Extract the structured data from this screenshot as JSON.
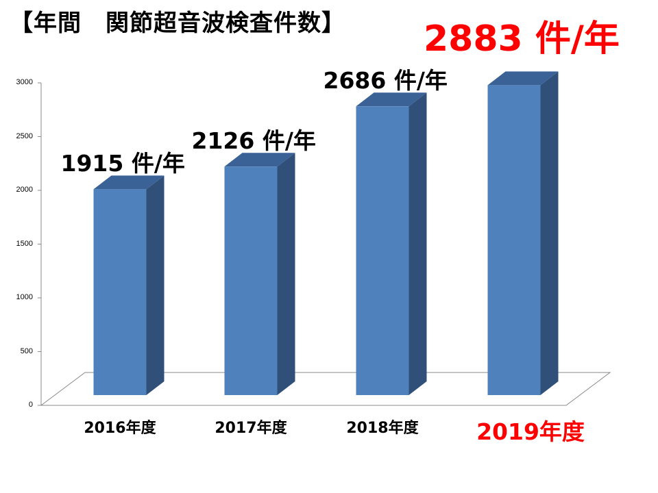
{
  "title": "【年間　関節超音波検査件数】",
  "headline": "2883 件/年",
  "colors": {
    "bar_front": "#4f81bd",
    "bar_side": "#30507a",
    "bar_top": "#3a6296",
    "highlight": "#ff0000",
    "axis": "#888888"
  },
  "chart_data": {
    "type": "bar",
    "categories": [
      "2016年度",
      "2017年度",
      "2018年度",
      "2019年度"
    ],
    "values": [
      1915,
      2126,
      2686,
      2883
    ],
    "bar_labels": [
      "1915 件/年",
      "2126 件/年",
      "2686 件/年",
      ""
    ],
    "highlight_category": "2019年度",
    "yticks": [
      "0",
      "500",
      "1000",
      "1500",
      "2000",
      "2500",
      "3000"
    ],
    "ylim": [
      0,
      3000
    ],
    "grid": false,
    "style": "3d-column"
  }
}
